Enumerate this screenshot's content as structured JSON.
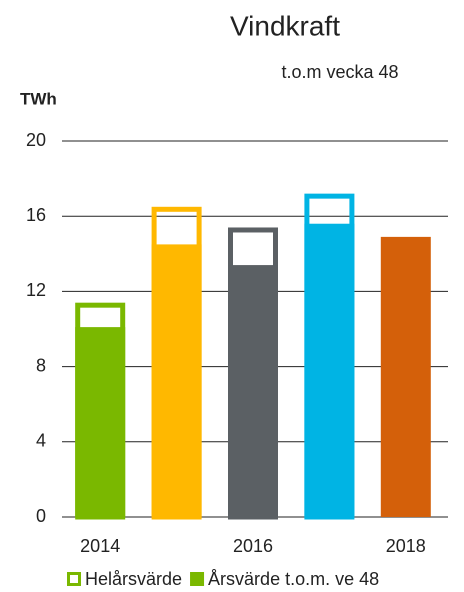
{
  "chart_data": {
    "type": "bar",
    "title": "Vindkraft",
    "subtitle": "t.o.m vecka 48",
    "y_label": "TWh",
    "categories": [
      "2014",
      null,
      "2016",
      null,
      "2018"
    ],
    "bar_colors": [
      "#7ab800",
      "#ffb800",
      "#5b6064",
      "#00b4e4",
      "#d4600a"
    ],
    "series": [
      {
        "name": "Helårsvärde",
        "color": "#7ab800",
        "style": "outline",
        "values": [
          11.4,
          16.5,
          15.4,
          17.2,
          null
        ]
      },
      {
        "name": "Årsvärde t.o.m. ve 48",
        "color": "#7ab800",
        "style": "filled",
        "values": [
          10.1,
          14.5,
          13.4,
          15.6,
          14.9
        ]
      }
    ],
    "ylim": [
      0,
      20
    ],
    "yticks": [
      0,
      4,
      8,
      12,
      16,
      20
    ],
    "grid": true
  }
}
